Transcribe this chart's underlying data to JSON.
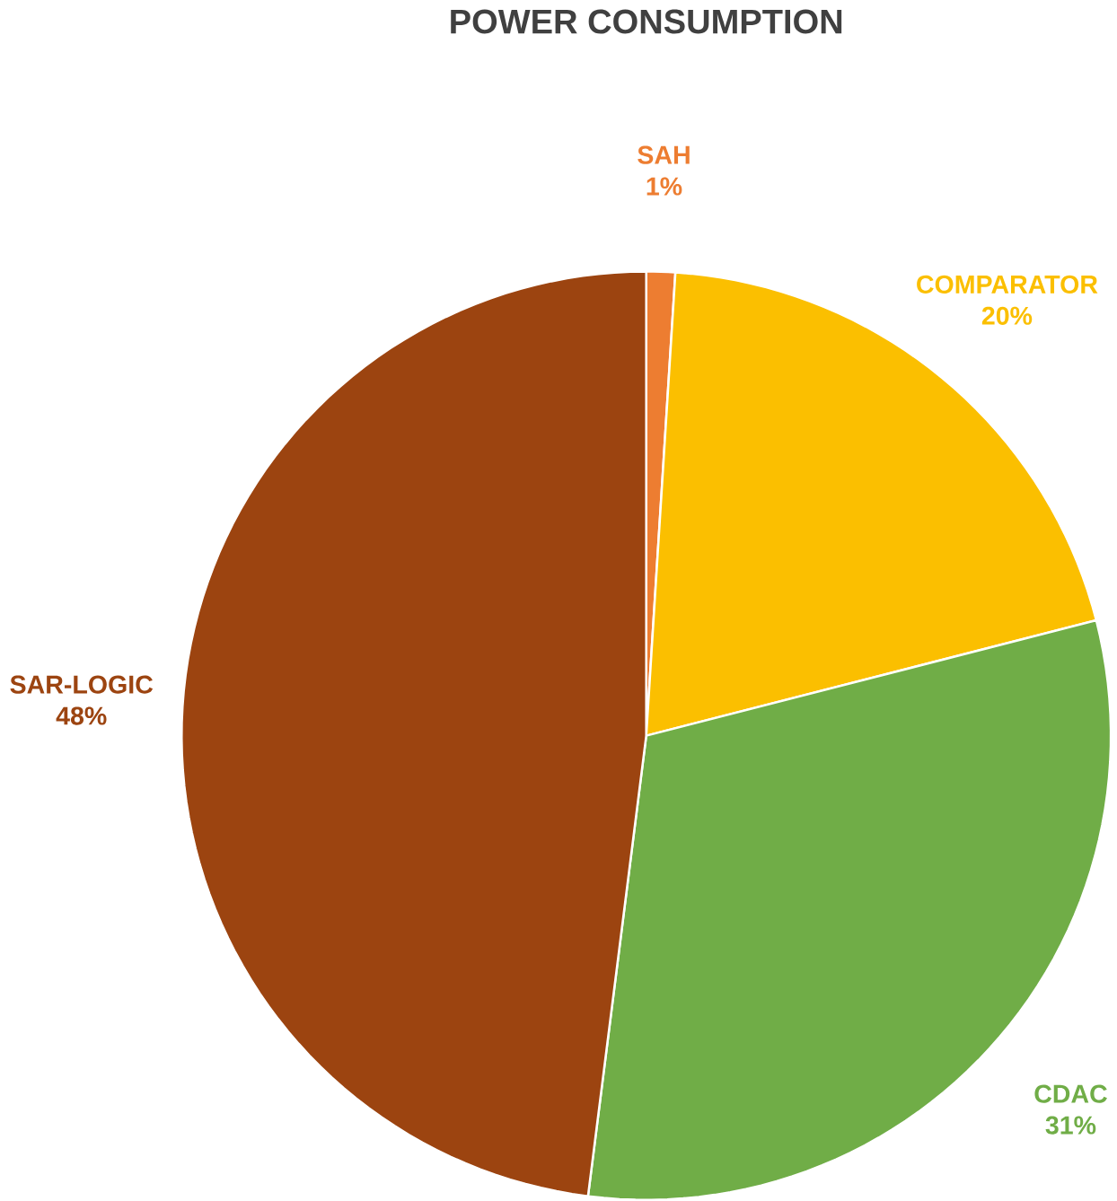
{
  "chart_data": {
    "type": "pie",
    "title": "POWER CONSUMPTION",
    "categories": [
      "SAH",
      "COMPARATOR",
      "CDAC",
      "SAR-LOGIC"
    ],
    "values": [
      1,
      20,
      31,
      48
    ],
    "value_labels": [
      "1%",
      "20%",
      "31%",
      "48%"
    ],
    "colors": [
      "#ed7d31",
      "#fbbf00",
      "#70ad47",
      "#9c4410"
    ]
  }
}
